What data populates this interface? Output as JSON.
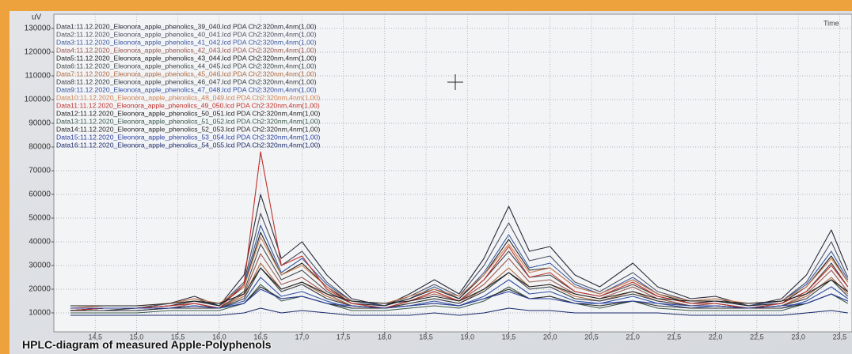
{
  "chart_data": {
    "type": "line",
    "caption": "HPLC-diagram of measured Apple-Polyphenols",
    "y_label": "uV",
    "x_label": "Time",
    "xlim": [
      14.0,
      23.65
    ],
    "ylim": [
      2000,
      136000
    ],
    "grid": true,
    "legend": "top-left",
    "xticks": [
      {
        "value": 14.5,
        "label": "14,5"
      },
      {
        "value": 15.0,
        "label": "15,0"
      },
      {
        "value": 15.5,
        "label": "15,5"
      },
      {
        "value": 16.0,
        "label": "16,0"
      },
      {
        "value": 16.5,
        "label": "16,5"
      },
      {
        "value": 17.0,
        "label": "17,0"
      },
      {
        "value": 17.5,
        "label": "17,5"
      },
      {
        "value": 18.0,
        "label": "18,0"
      },
      {
        "value": 18.5,
        "label": "18,5"
      },
      {
        "value": 19.0,
        "label": "19,0"
      },
      {
        "value": 19.5,
        "label": "19,5"
      },
      {
        "value": 20.0,
        "label": "20,0"
      },
      {
        "value": 20.5,
        "label": "20,5"
      },
      {
        "value": 21.0,
        "label": "21,0"
      },
      {
        "value": 21.5,
        "label": "21,5"
      },
      {
        "value": 22.0,
        "label": "22,0"
      },
      {
        "value": 22.5,
        "label": "22,5"
      },
      {
        "value": 23.0,
        "label": "23,0"
      },
      {
        "value": 23.5,
        "label": "23,5"
      }
    ],
    "yticks": [
      10000,
      20000,
      30000,
      40000,
      50000,
      60000,
      70000,
      80000,
      90000,
      100000,
      110000,
      120000,
      130000
    ],
    "x": [
      14.2,
      14.6,
      15.0,
      15.4,
      15.7,
      16.0,
      16.3,
      16.5,
      16.75,
      17.0,
      17.3,
      17.6,
      18.0,
      18.3,
      18.6,
      18.9,
      19.2,
      19.5,
      19.75,
      20.0,
      20.3,
      20.6,
      21.0,
      21.3,
      21.7,
      22.0,
      22.4,
      22.8,
      23.1,
      23.4,
      23.6
    ],
    "series": [
      {
        "name": "Data1:11.12.2020_Eleonora_apple_phenolics_39_040.lcd PDA Ch2:320nm,4nm(1,00)",
        "color": "#2a2a3a",
        "values": [
          11000,
          12000,
          12000,
          14000,
          17000,
          13000,
          26000,
          60000,
          33000,
          40000,
          26000,
          16000,
          13000,
          18000,
          24000,
          18000,
          33000,
          55000,
          36000,
          38000,
          26000,
          21000,
          31000,
          21000,
          16000,
          17000,
          13000,
          16000,
          26000,
          45000,
          28000
        ]
      },
      {
        "name": "Data2:11.12.2020_Eleonora_apple_phenolics_40_041.lcd PDA Ch2:320nm,4nm(1,00)",
        "color": "#4a5060",
        "values": [
          11000,
          12000,
          12000,
          14000,
          16000,
          13000,
          23000,
          52000,
          30000,
          36000,
          23000,
          15000,
          13000,
          17000,
          22000,
          17000,
          30000,
          48000,
          32000,
          34000,
          23000,
          19000,
          27000,
          19000,
          15000,
          16000,
          13000,
          15000,
          23000,
          40000,
          25000
        ]
      },
      {
        "name": "Data3:11.12.2020_Eleonora_apple_phenolics_41_042.lcd PDA Ch2:320nm,4nm(1,00)",
        "color": "#3a5aa0",
        "values": [
          11000,
          12000,
          12000,
          13000,
          15000,
          13000,
          22000,
          47000,
          27000,
          33000,
          22000,
          15000,
          13000,
          16000,
          21000,
          16000,
          27000,
          43000,
          29000,
          31000,
          22000,
          18000,
          25000,
          18000,
          15000,
          15000,
          13000,
          15000,
          22000,
          36000,
          24000
        ]
      },
      {
        "name": "Data4:11.12.2020_Eleonora_apple_phenolics_42_043.lcd PDA Ch2:320nm,4nm(1,00)",
        "color": "#9a5a50",
        "values": [
          11000,
          12000,
          12000,
          12000,
          14000,
          12000,
          18000,
          35000,
          22000,
          25000,
          18000,
          13000,
          12000,
          15000,
          18000,
          15000,
          22000,
          33000,
          23000,
          24000,
          18000,
          16000,
          21000,
          16000,
          13000,
          14000,
          12000,
          13000,
          18000,
          28000,
          19000
        ]
      },
      {
        "name": "Data5:11.12.2020_Eleonora_apple_phenolics_43_044.lcd PDA Ch2:320nm,4nm(1,00)",
        "color": "#222222",
        "values": [
          11000,
          12000,
          12000,
          13000,
          15000,
          13000,
          21000,
          44000,
          26000,
          31000,
          21000,
          14000,
          13000,
          16000,
          20000,
          16000,
          26000,
          41000,
          28000,
          29000,
          21000,
          18000,
          24000,
          18000,
          14000,
          15000,
          13000,
          14000,
          21000,
          34000,
          23000
        ]
      },
      {
        "name": "Data6:11.12.2020_Eleonora_apple_phenolics_44_045.lcd PDA Ch2:320nm,4nm(1,00)",
        "color": "#404848",
        "values": [
          11000,
          12000,
          12000,
          13000,
          14000,
          12000,
          19000,
          39000,
          24000,
          28000,
          19000,
          14000,
          12000,
          15000,
          19000,
          15000,
          24000,
          36000,
          25000,
          26000,
          19000,
          17000,
          22000,
          17000,
          14000,
          14000,
          12000,
          14000,
          19000,
          31000,
          21000
        ]
      },
      {
        "name": "Data7:11.12.2020_Eleonora_apple_phenolics_45_046.lcd PDA Ch2:320nm,4nm(1,00)",
        "color": "#b06a40",
        "values": [
          11000,
          11000,
          12000,
          12000,
          13000,
          12000,
          17000,
          31000,
          20000,
          23000,
          17000,
          13000,
          12000,
          14000,
          16000,
          14000,
          20000,
          29000,
          21000,
          22000,
          17000,
          15000,
          19000,
          15000,
          13000,
          13000,
          12000,
          13000,
          17000,
          25000,
          18000
        ]
      },
      {
        "name": "Data8:11.12.2020_Eleonora_apple_phenolics_46_047.lcd PDA Ch2:320nm,4nm(1,00)",
        "color": "#303a40",
        "values": [
          11000,
          11000,
          12000,
          12000,
          13000,
          12000,
          16000,
          29000,
          19000,
          22000,
          16000,
          13000,
          12000,
          14000,
          16000,
          14000,
          19000,
          27000,
          20000,
          21000,
          16000,
          15000,
          18000,
          15000,
          13000,
          13000,
          12000,
          13000,
          16000,
          24000,
          17000
        ]
      },
      {
        "name": "Data9:11.12.2020_Eleonora_apple_phenolics_47_048.lcd PDA Ch2:320nm,4nm(1,00)",
        "color": "#3050a0",
        "values": [
          11000,
          11000,
          11000,
          12000,
          13000,
          12000,
          15000,
          25000,
          17000,
          19000,
          15000,
          12000,
          12000,
          13000,
          15000,
          13000,
          17000,
          24000,
          18000,
          19000,
          15000,
          14000,
          17000,
          14000,
          12000,
          13000,
          12000,
          12000,
          15000,
          21000,
          16000
        ]
      },
      {
        "name": "Data10:11.12.2020_Eleonora_apple_phenolics_48_049.lcd PDA Ch2:320nm,4nm(1,00)",
        "color": "#d08050",
        "values": [
          12000,
          13000,
          13000,
          14000,
          16000,
          14000,
          21000,
          42000,
          26000,
          30000,
          21000,
          15000,
          14000,
          17000,
          20000,
          17000,
          26000,
          39000,
          27000,
          29000,
          21000,
          18000,
          24000,
          18000,
          15000,
          16000,
          14000,
          15000,
          21000,
          33000,
          23000
        ]
      },
      {
        "name": "Data11:11.12.2020_Eleonora_apple_phenolics_49_050.lcd PDA Ch2:320nm,4nm(1,00)",
        "color": "#c0302a",
        "values": [
          11000,
          12000,
          12000,
          13000,
          14000,
          12000,
          22000,
          78000,
          30000,
          34000,
          20000,
          14000,
          12000,
          15000,
          19000,
          15000,
          24000,
          38000,
          25000,
          27000,
          19000,
          17000,
          23000,
          17000,
          14000,
          14000,
          12000,
          14000,
          19000,
          30000,
          21000
        ]
      },
      {
        "name": "Data12:11.12.2020_Eleonora_apple_phenolics_50_051.lcd PDA Ch2:320nm,4nm(1,00)",
        "color": "#202020",
        "values": [
          13000,
          13000,
          13000,
          14000,
          15000,
          14000,
          18000,
          29000,
          20000,
          23000,
          18000,
          15000,
          14000,
          15000,
          17000,
          15000,
          20000,
          27000,
          21000,
          22000,
          18000,
          16000,
          19000,
          16000,
          15000,
          15000,
          14000,
          15000,
          18000,
          24000,
          19000
        ]
      },
      {
        "name": "Data13:11.12.2020_Eleonora_apple_phenolics_51_052.lcd PDA Ch2:320nm,4nm(1,00)",
        "color": "#3a5a4a",
        "values": [
          10000,
          10000,
          10000,
          11000,
          11000,
          11000,
          14000,
          22000,
          15000,
          17000,
          14000,
          11000,
          11000,
          12000,
          13000,
          12000,
          15000,
          21000,
          16000,
          17000,
          14000,
          12000,
          15000,
          12000,
          11000,
          11000,
          11000,
          11000,
          14000,
          18000,
          14000
        ]
      },
      {
        "name": "Data14:11.12.2020_Eleonora_apple_phenolics_52_053.lcd PDA Ch2:320nm,4nm(1,00)",
        "color": "#2a2a2a",
        "values": [
          11000,
          11000,
          11000,
          12000,
          12000,
          12000,
          14000,
          21000,
          16000,
          17000,
          14000,
          12000,
          12000,
          13000,
          14000,
          13000,
          16000,
          20000,
          16000,
          17000,
          14000,
          13000,
          15000,
          13000,
          12000,
          12000,
          12000,
          12000,
          14000,
          18000,
          15000
        ]
      },
      {
        "name": "Data15:11.12.2020_Eleonora_apple_phenolics_53_054.lcd PDA Ch2:320nm,4nm(1,00)",
        "color": "#2a40a0",
        "values": [
          12000,
          12000,
          12000,
          12000,
          13000,
          12000,
          14000,
          20000,
          16000,
          17000,
          14000,
          13000,
          12000,
          13000,
          14000,
          13000,
          16000,
          19000,
          16000,
          16000,
          14000,
          14000,
          15000,
          14000,
          13000,
          13000,
          12000,
          13000,
          14000,
          18000,
          15000
        ]
      },
      {
        "name": "Data16:11.12.2020_Eleonora_apple_phenolics_54_055.lcd PDA Ch2:320nm,4nm(1,00)",
        "color": "#1a2a6a",
        "values": [
          9000,
          9000,
          9000,
          9000,
          9000,
          9000,
          10000,
          12000,
          10000,
          11000,
          10000,
          9000,
          9000,
          9000,
          10000,
          9000,
          10000,
          12000,
          11000,
          11000,
          10000,
          10000,
          10000,
          10000,
          9000,
          9000,
          9000,
          9000,
          10000,
          11000,
          10000
        ]
      }
    ]
  }
}
